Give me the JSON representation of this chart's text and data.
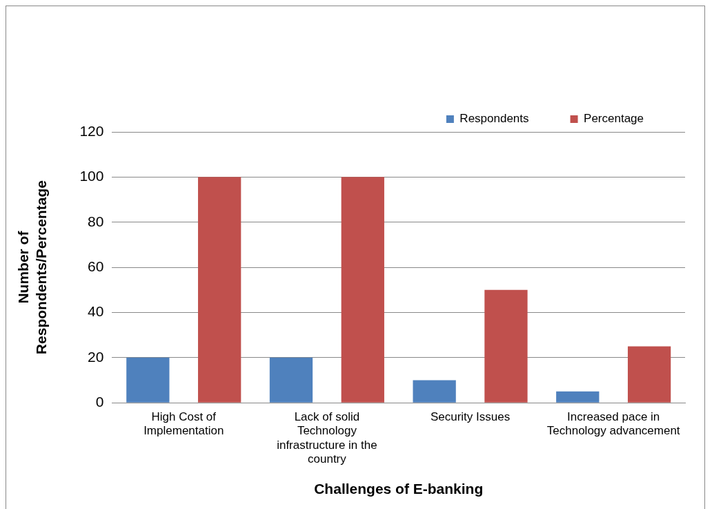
{
  "chart_data": {
    "type": "bar",
    "xlabel": "Challenges of E-banking",
    "ylabel": "Number of Respondents/Percentage",
    "categories": [
      "High Cost of Implementation",
      "Lack of solid Technology infrastructure in the country",
      "Security Issues",
      "Increased pace in Technology advancement"
    ],
    "series": [
      {
        "name": "Respondents",
        "color": "#4f81bd",
        "values": [
          20,
          20,
          10,
          5
        ]
      },
      {
        "name": "Percentage",
        "color": "#c0504d",
        "values": [
          100,
          100,
          50,
          25
        ]
      }
    ],
    "ylim": [
      0,
      120
    ],
    "yticks": [
      0,
      20,
      40,
      60,
      80,
      100,
      120
    ],
    "grid": "y",
    "legend": "top right"
  }
}
